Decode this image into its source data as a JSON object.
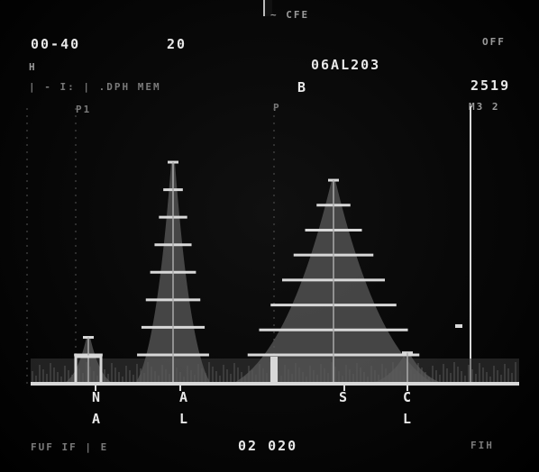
{
  "header": {
    "range": "00-40",
    "time": "20",
    "top_faint": "~ CFE",
    "off_label": "OFF",
    "sample_id": "06AL203",
    "channel_letter": "B",
    "row2_left": "H",
    "row3_faint": "| - I: | .DPH MEM",
    "count": "2519",
    "marker_label_left": "P1",
    "marker_label_mid": "P",
    "marker_label_right": "M3 2"
  },
  "peaks": [
    {
      "element": "NA",
      "line1": "N",
      "line2": "A",
      "relative_height": 0.18
    },
    {
      "element": "AL",
      "line1": "A",
      "line2": "L",
      "relative_height": 0.86
    },
    {
      "element": "S",
      "line1": "S",
      "line2": "",
      "relative_height": 0.79
    },
    {
      "element": "CL",
      "line1": "C",
      "line2": "L",
      "relative_height": 0.12
    }
  ],
  "footer": {
    "left_faint": "FUF IF  | E",
    "value": "02 020",
    "right_faint": "FIH"
  },
  "colors": {
    "trace": "#d8d8d8",
    "background": "#050505",
    "text": "#e8e8e8"
  }
}
